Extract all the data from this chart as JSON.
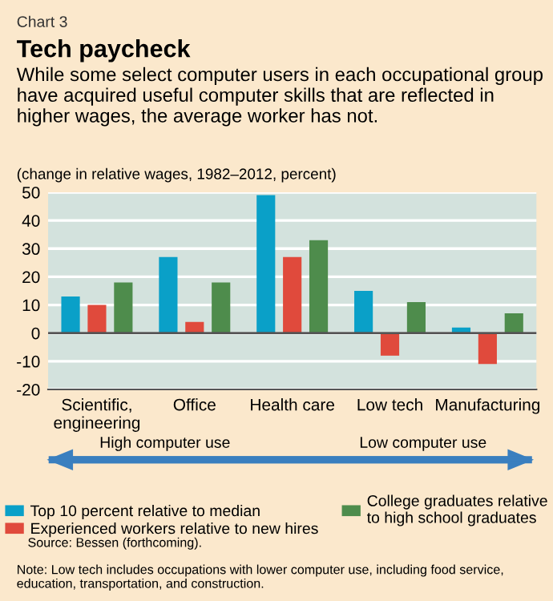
{
  "chart_data": {
    "type": "bar",
    "title": "Tech paycheck",
    "subtitle": "While some select computer users in each occupational group have acquired useful computer skills that are reflected in higher wages, the average worker has not.",
    "ylabel": "(change in relative wages, 1982–2012, percent)",
    "categories": [
      "Scientific,\nengineering",
      "Office",
      "Health care",
      "Low tech",
      "Manufacturing"
    ],
    "series": [
      {
        "name": "Top 10 percent relative to median",
        "color": "#0aa0c8",
        "values": [
          13,
          27,
          49,
          15,
          2
        ]
      },
      {
        "name": "Experienced workers relative to new hires",
        "color": "#e04a3c",
        "values": [
          10,
          4,
          27,
          -8,
          -11
        ]
      },
      {
        "name": "College graduates relative\nto high school graduates",
        "color": "#4e8c4c",
        "values": [
          18,
          18,
          33,
          11,
          7
        ]
      }
    ],
    "ylim": [
      -20,
      50
    ],
    "yticks": [
      -20,
      -10,
      0,
      10,
      20,
      30,
      40,
      50
    ],
    "grid": "y",
    "legend": "bottom",
    "annotations": [
      "Chart 3",
      "High computer use",
      "Low computer use",
      "Source: Bessen (forthcoming).",
      "Note: Low tech includes occupations with lower computer use, including food service, education, transportation, and construction."
    ]
  }
}
